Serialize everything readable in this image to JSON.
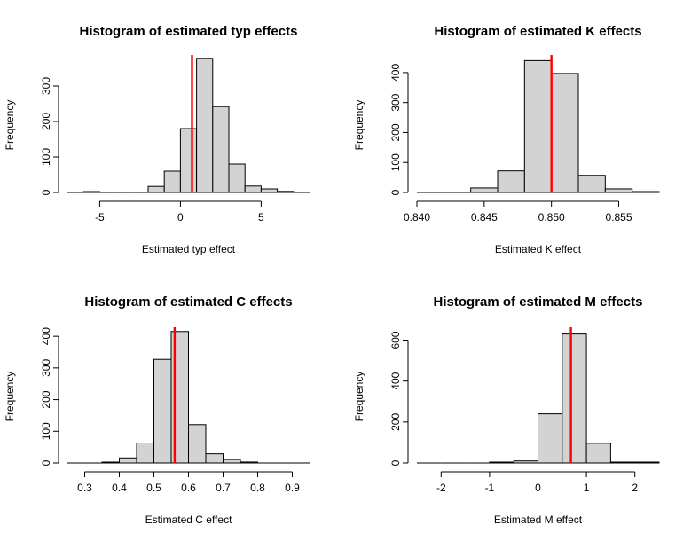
{
  "chart_data": [
    {
      "type": "bar",
      "title": "Histogram of estimated typ effects",
      "xlabel": "Estimated typ effect",
      "ylabel": "Frequency",
      "bin_edges": [
        -7,
        -6,
        -5,
        -4,
        -3,
        -2,
        -1,
        0,
        1,
        2,
        3,
        4,
        5,
        6,
        7,
        8
      ],
      "counts": [
        0,
        2,
        0,
        0,
        0,
        17,
        60,
        180,
        378,
        242,
        80,
        18,
        10,
        3,
        0,
        2
      ],
      "xlim": [
        -7,
        8
      ],
      "ylim": [
        0,
        380
      ],
      "xticks": [
        -5,
        0,
        5
      ],
      "xtick_labels": [
        "-5",
        "0",
        "5"
      ],
      "yticks": [
        0,
        100,
        200,
        300
      ],
      "ytick_labels": [
        "0",
        "100",
        "200",
        "300"
      ],
      "vline": 0.72,
      "vline_color": "#ff0000"
    },
    {
      "type": "bar",
      "title": "Histogram of estimated K effects",
      "xlabel": "Estimated K effect",
      "ylabel": "Frequency",
      "bin_edges": [
        0.84,
        0.842,
        0.844,
        0.846,
        0.848,
        0.85,
        0.852,
        0.854,
        0.856,
        0.858
      ],
      "counts": [
        0,
        0,
        15,
        72,
        440,
        397,
        57,
        12,
        2
      ],
      "xlim": [
        0.84,
        0.858
      ],
      "ylim": [
        0,
        450
      ],
      "xticks": [
        0.84,
        0.845,
        0.85,
        0.855
      ],
      "xtick_labels": [
        "0.840",
        "0.845",
        "0.850",
        "0.855"
      ],
      "yticks": [
        0,
        100,
        200,
        300,
        400
      ],
      "ytick_labels": [
        "0",
        "100",
        "200",
        "300",
        "400"
      ],
      "vline": 0.85,
      "vline_color": "#ff0000"
    },
    {
      "type": "bar",
      "title": "Histogram of estimated C effects",
      "xlabel": "Estimated C effect",
      "ylabel": "Frequency",
      "bin_edges": [
        0.25,
        0.3,
        0.35,
        0.4,
        0.45,
        0.5,
        0.55,
        0.6,
        0.65,
        0.7,
        0.75,
        0.8,
        0.85,
        0.9,
        0.95
      ],
      "counts": [
        0,
        0,
        2,
        16,
        63,
        327,
        415,
        121,
        29,
        11,
        3,
        0,
        0,
        0
      ],
      "xlim": [
        0.25,
        0.95
      ],
      "ylim": [
        0,
        420
      ],
      "xticks": [
        0.3,
        0.4,
        0.5,
        0.6,
        0.7,
        0.8,
        0.9
      ],
      "xtick_labels": [
        "0.3",
        "0.4",
        "0.5",
        "0.6",
        "0.7",
        "0.8",
        "0.9"
      ],
      "yticks": [
        0,
        100,
        200,
        300,
        400
      ],
      "ytick_labels": [
        "0",
        "100",
        "200",
        "300",
        "400"
      ],
      "vline": 0.56,
      "vline_color": "#ff0000"
    },
    {
      "type": "bar",
      "title": "Histogram of estimated M effects",
      "xlabel": "Estimated M effect",
      "ylabel": "Frequency",
      "bin_edges": [
        -2.5,
        -2.0,
        -1.5,
        -1.0,
        -0.5,
        0.0,
        0.5,
        1.0,
        1.5,
        2.0,
        2.5
      ],
      "counts": [
        0,
        0,
        0,
        2,
        10,
        240,
        630,
        96,
        3,
        2
      ],
      "xlim": [
        -2.5,
        2.5
      ],
      "ylim": [
        0,
        650
      ],
      "xticks": [
        -2,
        -1,
        0,
        1,
        2
      ],
      "xtick_labels": [
        "-2",
        "-1",
        "0",
        "1",
        "2"
      ],
      "yticks": [
        0,
        200,
        400,
        600
      ],
      "ytick_labels": [
        "0",
        "200",
        "400",
        "600"
      ],
      "vline": 0.68,
      "vline_color": "#ff0000"
    }
  ]
}
